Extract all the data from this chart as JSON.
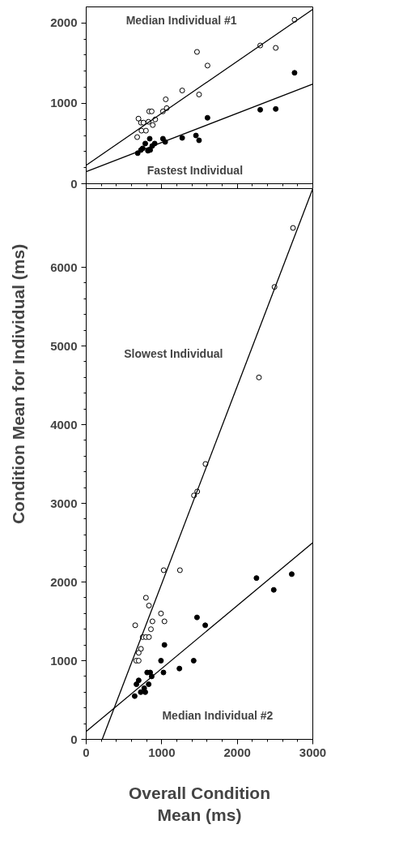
{
  "chart_data": [
    {
      "type": "scatter",
      "xlim": [
        0,
        3000
      ],
      "ylim": [
        0,
        2200
      ],
      "xticks": [
        0,
        1000,
        2000,
        3000
      ],
      "yticks": [
        0,
        1000,
        2000
      ],
      "tick_labels": "y",
      "grid": false,
      "series": [
        {
          "marker": "circle",
          "color": "#ffffff",
          "x": [
            675,
            692,
            725,
            732,
            758,
            791,
            824,
            834,
            867,
            881,
            914,
            1016,
            1053,
            1066,
            1271,
            1467,
            1494,
            1606,
            2304,
            2509,
            2758
          ],
          "values": [
            580,
            810,
            760,
            660,
            760,
            660,
            770,
            900,
            900,
            730,
            800,
            900,
            1050,
            940,
            1160,
            1640,
            1110,
            1470,
            1720,
            1690,
            2040
          ]
        },
        {
          "marker": "circle",
          "color": "#000000",
          "x": [
            682,
            725,
            748,
            782,
            817,
            841,
            847,
            874,
            907,
            1016,
            1046,
            1271,
            1453,
            1494,
            1606,
            2304,
            2509,
            2758
          ],
          "values": [
            380,
            420,
            440,
            500,
            410,
            560,
            420,
            470,
            500,
            560,
            520,
            570,
            600,
            540,
            820,
            920,
            930,
            1380
          ]
        },
        {
          "type": "line",
          "name": "Median Individual #1",
          "color": "#000000",
          "x": [
            0,
            3000
          ],
          "values": [
            230,
            2170
          ]
        },
        {
          "type": "line",
          "name": "Fastest Individual",
          "color": "#000000",
          "x": [
            0,
            3000
          ],
          "values": [
            150,
            1240
          ]
        }
      ]
    },
    {
      "type": "scatter",
      "xlim": [
        0,
        3000
      ],
      "ylim": [
        0,
        7000
      ],
      "xticks": [
        0,
        1000,
        2000,
        3000
      ],
      "yticks": [
        0,
        1000,
        2000,
        3000,
        4000,
        5000,
        6000
      ],
      "grid": false,
      "xlabel": "Overall Condition Mean (ms)",
      "ylabel": "Condition Mean for Individual (ms)",
      "series": [
        {
          "marker": "circle",
          "color": "#ffffff",
          "x": [
            2738,
            2493,
            2287,
            1579,
            1470,
            1427,
            1026,
            1241,
            791,
            831,
            990,
            649,
            877,
            1036,
            857,
            748,
            791,
            831,
            725,
            695,
            662,
            695
          ],
          "values": [
            6500,
            5750,
            4600,
            3500,
            3150,
            3100,
            2150,
            2150,
            1800,
            1700,
            1600,
            1450,
            1500,
            1500,
            1400,
            1300,
            1300,
            1300,
            1150,
            1100,
            1000,
            1000
          ]
        },
        {
          "marker": "circle",
          "color": "#000000",
          "x": [
            2254,
            2721,
            2483,
            1467,
            1576,
            1036,
            990,
            1423,
            1234,
            1023,
            807,
            847,
            867,
            695,
            665,
            827,
            768,
            782,
            722,
            642
          ],
          "values": [
            2050,
            2100,
            1900,
            1550,
            1450,
            1200,
            1000,
            1000,
            900,
            850,
            850,
            850,
            800,
            750,
            700,
            700,
            650,
            600,
            600,
            550
          ]
        },
        {
          "type": "line",
          "name": "Slowest Individual",
          "color": "#000000",
          "x": [
            212,
            3000
          ],
          "values": [
            0,
            7000
          ]
        },
        {
          "type": "line",
          "name": "Median Individual #2",
          "color": "#000000",
          "x": [
            0,
            3000
          ],
          "values": [
            100,
            2500
          ]
        }
      ]
    }
  ]
}
